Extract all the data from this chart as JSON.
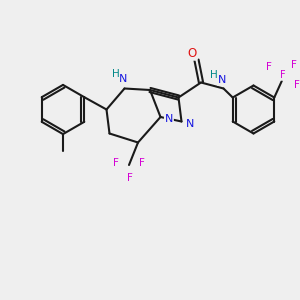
{
  "background_color": "#efefef",
  "bond_color": "#1a1a1a",
  "atom_colors": {
    "N": "#1414e0",
    "O": "#e01414",
    "F": "#d400d4",
    "H_label": "#008888",
    "C": "#1a1a1a"
  },
  "figsize": [
    3.0,
    3.0
  ],
  "dpi": 100,
  "xlim": [
    0,
    10
  ],
  "ylim": [
    0,
    10
  ]
}
